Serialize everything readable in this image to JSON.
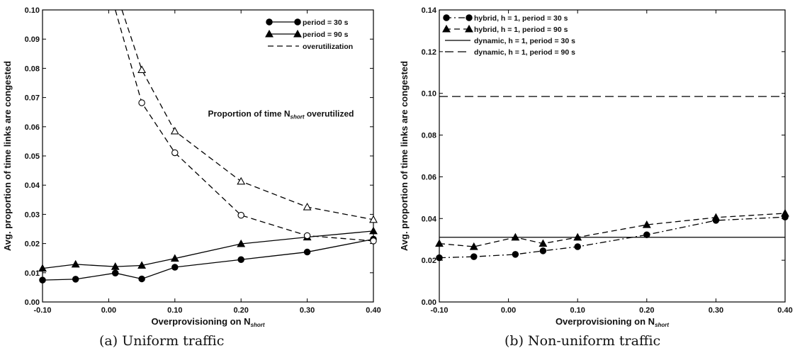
{
  "chart_data": [
    {
      "type": "line",
      "caption": "(a) Uniform traffic",
      "ylabel": "Avg. proportion of time links are congested",
      "xlabel_main": "Overprovisioning on N",
      "xlabel_sub": "short",
      "xlim": [
        -0.1,
        0.4
      ],
      "ylim": [
        0,
        0.1
      ],
      "xticks": [
        -0.1,
        0,
        0.1,
        0.2,
        0.3,
        0.4
      ],
      "xtick_labels": [
        "-0.10",
        "0.00",
        "0.10",
        "0.20",
        "0.30",
        "0.40"
      ],
      "yticks": [
        0,
        0.01,
        0.02,
        0.03,
        0.04,
        0.05,
        0.06,
        0.07,
        0.08,
        0.09,
        0.1
      ],
      "ytick_labels": [
        "0.00",
        "0.01",
        "0.02",
        "0.03",
        "0.04",
        "0.05",
        "0.06",
        "0.07",
        "0.08",
        "0.09",
        "0.10"
      ],
      "legend": {
        "position": "top-right",
        "entries": [
          {
            "label": "period = 30 s",
            "style": "solid",
            "marker": "circle-filled"
          },
          {
            "label": "period = 90 s",
            "style": "solid",
            "marker": "triangle-filled"
          },
          {
            "label": "overutilization",
            "style": "dashed",
            "marker": "none"
          }
        ]
      },
      "annotation": {
        "main": "Proportion of time N",
        "sub": "short",
        "tail": " overutilized",
        "x": 0.15,
        "y": 0.0635
      },
      "series": [
        {
          "name": "period = 30 s",
          "style": "solid",
          "marker": "circle-filled",
          "x": [
            -0.1,
            -0.05,
            0.01,
            0.05,
            0.1,
            0.2,
            0.3,
            0.4
          ],
          "y": [
            0.0075,
            0.0078,
            0.0099,
            0.0079,
            0.0119,
            0.0145,
            0.0171,
            0.0215
          ]
        },
        {
          "name": "period = 90 s",
          "style": "solid",
          "marker": "triangle-filled",
          "x": [
            -0.1,
            -0.05,
            0.01,
            0.05,
            0.1,
            0.2,
            0.3,
            0.4
          ],
          "y": [
            0.0115,
            0.0129,
            0.0121,
            0.0125,
            0.0149,
            0.0199,
            0.0222,
            0.0243
          ]
        },
        {
          "style": "dashed",
          "marker": "circle-open",
          "x": [
            0.01,
            0.05,
            0.1,
            0.2,
            0.3,
            0.4
          ],
          "y": [
            0.1,
            0.0682,
            0.0511,
            0.0297,
            0.0227,
            0.0209
          ]
        },
        {
          "style": "dashed",
          "marker": "triangle-open",
          "x": [
            0.02,
            0.05,
            0.1,
            0.2,
            0.3,
            0.4
          ],
          "y": [
            0.1,
            0.0795,
            0.0585,
            0.0413,
            0.0325,
            0.0282
          ]
        }
      ]
    },
    {
      "type": "line",
      "caption": "(b) Non-uniform traffic",
      "ylabel": "Avg. proportion of time links are congested",
      "xlabel_main": "Overprovisioning on N",
      "xlabel_sub": "short",
      "xlim": [
        -0.1,
        0.4
      ],
      "ylim": [
        0,
        0.14
      ],
      "xticks": [
        -0.1,
        0,
        0.1,
        0.2,
        0.3,
        0.4
      ],
      "xtick_labels": [
        "-0.10",
        "0.00",
        "0.10",
        "0.20",
        "0.30",
        "0.40"
      ],
      "yticks": [
        0,
        0.02,
        0.04,
        0.06,
        0.08,
        0.1,
        0.12,
        0.14
      ],
      "ytick_labels": [
        "0.00",
        "0.02",
        "0.04",
        "0.06",
        "0.08",
        "0.10",
        "0.12",
        "0.14"
      ],
      "legend": {
        "position": "top-left",
        "entries": [
          {
            "label": "hybrid, h = 1, period = 30 s",
            "style": "dashdot",
            "marker": "circle-filled"
          },
          {
            "label": "hybrid, h = 1, period = 90 s",
            "style": "dashed",
            "marker": "triangle-filled"
          },
          {
            "label": "dynamic, h = 1, period = 30 s",
            "style": "solid",
            "marker": "none"
          },
          {
            "label": "dynamic, h = 1, period = 90 s",
            "style": "longdash",
            "marker": "none"
          }
        ]
      },
      "series": [
        {
          "name": "hybrid, h = 1, period = 30 s",
          "style": "dashdot",
          "marker": "circle-filled",
          "x": [
            -0.1,
            -0.05,
            0.01,
            0.05,
            0.1,
            0.2,
            0.3,
            0.4
          ],
          "y": [
            0.0212,
            0.0217,
            0.0228,
            0.0245,
            0.0265,
            0.0322,
            0.0391,
            0.0407
          ]
        },
        {
          "name": "hybrid, h = 1, period = 90 s",
          "style": "dashed",
          "marker": "triangle-filled",
          "x": [
            -0.1,
            -0.05,
            0.01,
            0.05,
            0.1,
            0.2,
            0.3,
            0.4
          ],
          "y": [
            0.028,
            0.0265,
            0.031,
            0.028,
            0.031,
            0.037,
            0.0405,
            0.0425
          ]
        },
        {
          "name": "dynamic, h = 1, period = 30 s",
          "style": "solid",
          "marker": "none",
          "x": [
            -0.1,
            0.4
          ],
          "y": [
            0.031,
            0.031
          ]
        },
        {
          "name": "dynamic, h = 1, period = 90 s",
          "style": "longdash",
          "marker": "none",
          "x": [
            -0.1,
            0.4
          ],
          "y": [
            0.0985,
            0.0985
          ]
        }
      ]
    }
  ]
}
